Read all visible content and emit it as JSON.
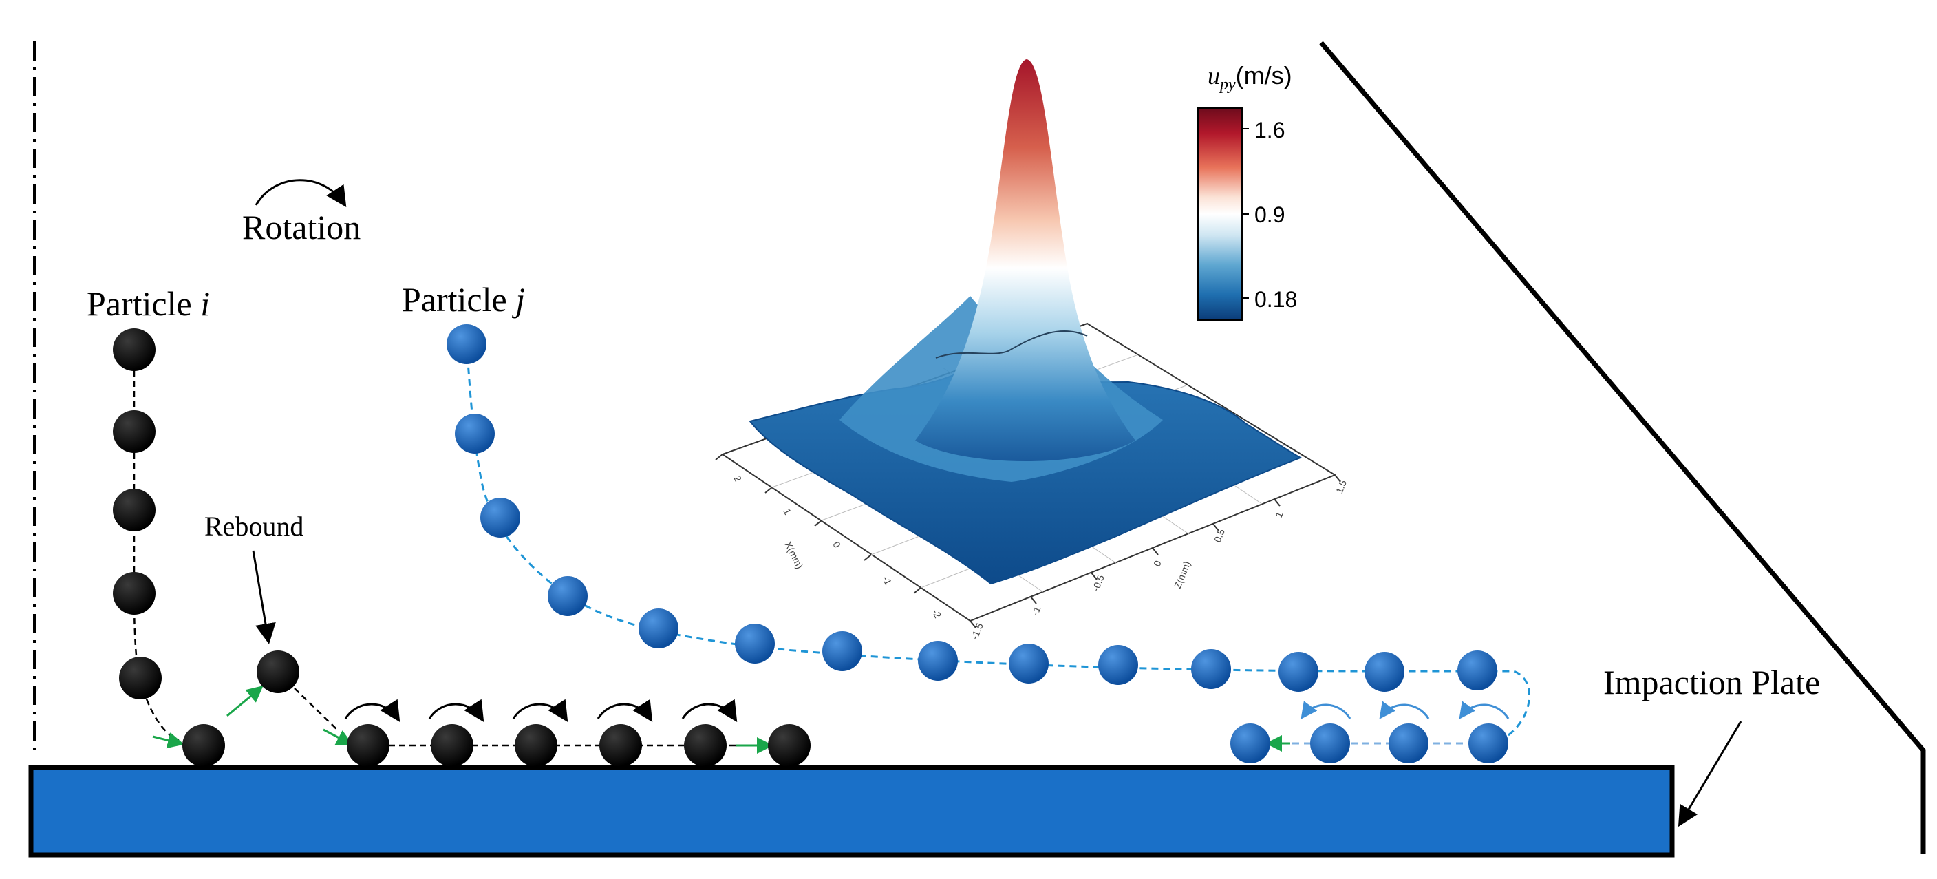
{
  "labels": {
    "particle_i_prefix": "Particle ",
    "particle_i_var": "i",
    "particle_j_prefix": "Particle ",
    "particle_j_var": "j",
    "rotation": "Rotation",
    "rebound": "Rebound",
    "impaction_plate": "Impaction Plate"
  },
  "colorbar": {
    "symbol_base": "u",
    "symbol_sub": "py",
    "unit": "(m/s)",
    "ticks": [
      "1.6",
      "0.9",
      "0.18"
    ],
    "stops": [
      "#6e0b1c",
      "#b2182b",
      "#e8735a",
      "#fbe2d6",
      "#ffffff",
      "#cfe6f2",
      "#5fa7d1",
      "#1f6fb0",
      "#0b3c78"
    ]
  },
  "surface_axes": {
    "x_label": "X(mm)",
    "z_label": "Z(mm)",
    "x_ticks": [
      "2",
      "1",
      "0",
      "-1",
      "-2"
    ],
    "z_ticks": [
      "-1.5",
      "-1",
      "-0.5",
      "0",
      "0.5",
      "1",
      "1.5"
    ]
  },
  "colors": {
    "particle_i": "#000000",
    "particle_j": "#1c66b8",
    "plate": "#1a70c8",
    "contact_arrow": "#1aa64a",
    "trajectory_j": "#1f95d6"
  }
}
